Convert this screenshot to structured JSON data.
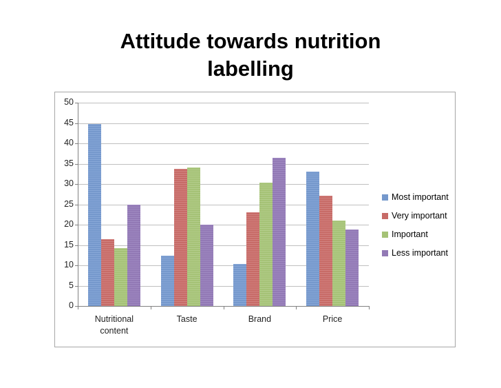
{
  "chart_data": {
    "type": "bar",
    "title": "Attitude towards nutrition labelling",
    "categories": [
      "Nutritional content",
      "Taste",
      "Brand",
      "Price"
    ],
    "series": [
      {
        "name": "Most important",
        "color": "#7598cc",
        "stripe": "#88a8d8",
        "values": [
          44.7,
          12.3,
          10.4,
          33.0
        ]
      },
      {
        "name": "Very important",
        "color": "#c76b67",
        "stripe": "#d28280",
        "values": [
          16.5,
          33.8,
          23.0,
          27.2
        ]
      },
      {
        "name": "Important",
        "color": "#a5c276",
        "stripe": "#b4cd8c",
        "values": [
          14.3,
          34.1,
          30.3,
          21.0
        ]
      },
      {
        "name": "Less important",
        "color": "#9279b5",
        "stripe": "#a08ac2",
        "values": [
          24.9,
          20.0,
          36.5,
          18.8
        ]
      }
    ],
    "xlabel": "",
    "ylabel": "",
    "ylim": [
      0,
      50
    ],
    "ytick_step": 5,
    "grid": true,
    "legend_position": "right"
  },
  "colors": {
    "grid": "#bfbfbf",
    "axis": "#808080",
    "frame_border": "#a6a6a6",
    "text": "#1f1f1f",
    "title": "#000000",
    "background": "#ffffff"
  }
}
